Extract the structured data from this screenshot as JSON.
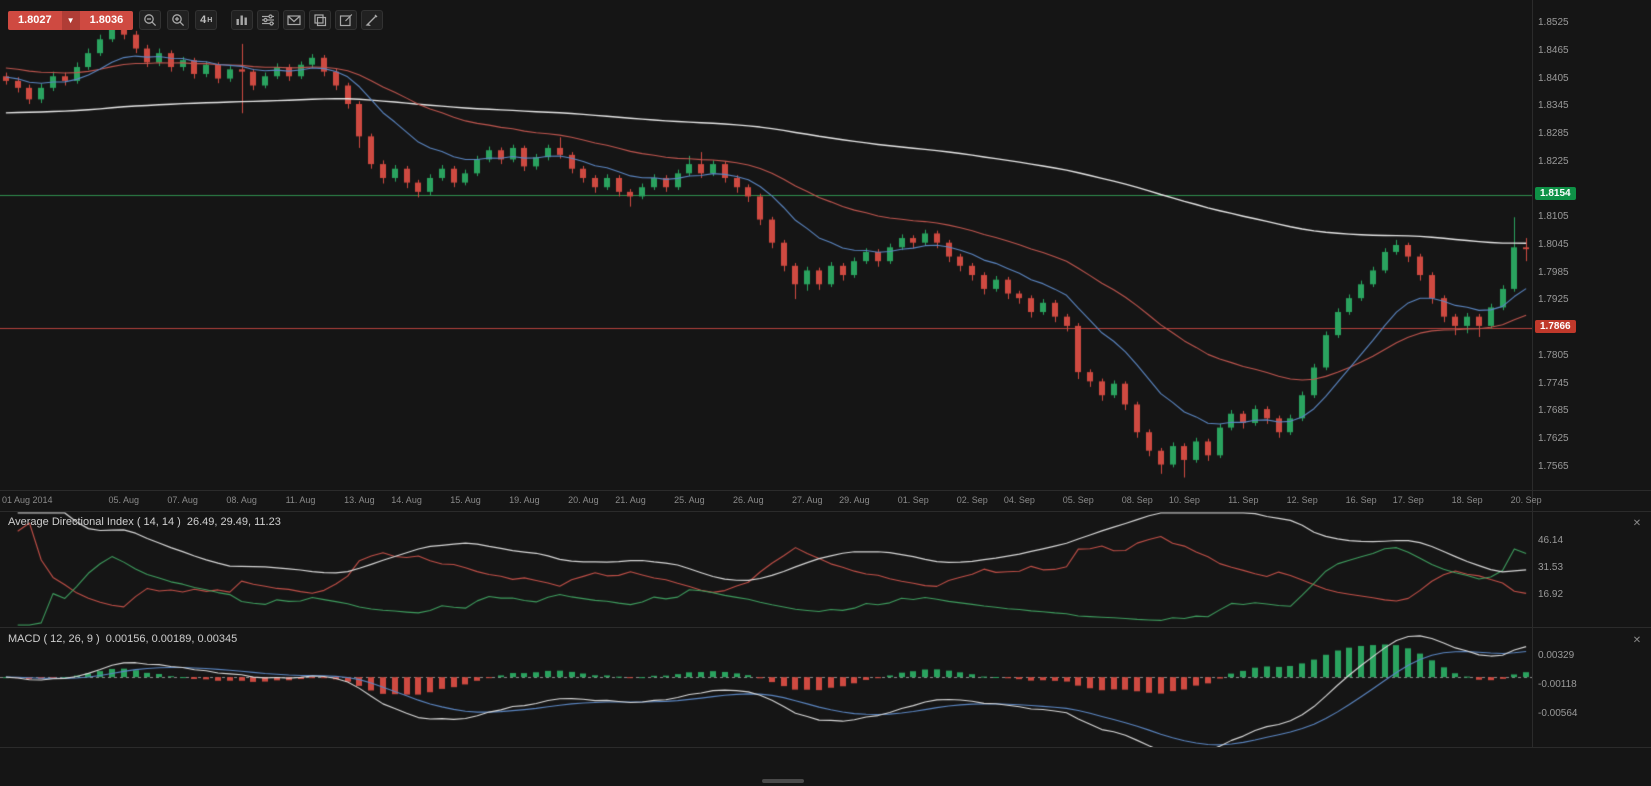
{
  "toolbar": {
    "sell_price": "1.8027",
    "buy_price": "1.8036",
    "timeframe_value": "4",
    "timeframe_unit": "H",
    "icon_names": [
      "price-direction-down",
      "zoom-out",
      "zoom-in",
      "timeframe",
      "chart-type",
      "indicators",
      "email",
      "copy",
      "edit",
      "draw"
    ],
    "close_label": "✕"
  },
  "colors": {
    "background": "#151515",
    "bull": "#2aa35f",
    "bear": "#cf4a41",
    "ma_white": "#e6e6e6",
    "ma_red": "#c0564f",
    "ma_blue": "#5b86c2",
    "hline_green": "#2f8f4e",
    "hline_red": "#b5423c",
    "badge_green": "#0e9146",
    "badge_red": "#c0392b",
    "adx_line": "#d8d8d8",
    "di_plus": "#3f9e5f",
    "di_minus": "#c25048",
    "macd_line": "#d8d8d8",
    "signal_line": "#5b86c2",
    "hist_pos": "#2aa35f",
    "hist_neg": "#cf4a41",
    "zero_line": "#8a8a8a",
    "axis_text": "#9a9a9a"
  },
  "chart_data": [
    {
      "type": "candlestick",
      "timeframe": "4H",
      "y_range": [
        1.7515,
        1.8575
      ],
      "y_ticks": [
        "1.8525",
        "1.8465",
        "1.8405",
        "1.8345",
        "1.8285",
        "1.8225",
        "1.8105",
        "1.8045",
        "1.7985",
        "1.7925",
        "1.7805",
        "1.7745",
        "1.7685",
        "1.7625",
        "1.7565"
      ],
      "hlines": [
        {
          "value": 1.8154,
          "label": "1.8154",
          "line_color_key": "hline_green",
          "badge_color_key": "badge_green"
        },
        {
          "value": 1.7866,
          "label": "1.7866",
          "line_color_key": "hline_red",
          "badge_color_key": "badge_red"
        }
      ],
      "overlays": [
        {
          "name": "slow-ma-white",
          "type": "ema",
          "period": 150,
          "seed": 1.833,
          "color_key": "ma_white"
        },
        {
          "name": "mid-ma-red",
          "type": "ema",
          "period": 30,
          "seed": 1.843,
          "color_key": "ma_red"
        },
        {
          "name": "fast-ma-blue",
          "type": "ema",
          "period": 11,
          "seed": 1.841,
          "color_key": "ma_blue"
        }
      ],
      "x_labels": [
        {
          "label": "01 Aug 2014",
          "i": 1
        },
        {
          "label": "05. Aug",
          "i": 10
        },
        {
          "label": "07. Aug",
          "i": 15
        },
        {
          "label": "08. Aug",
          "i": 20
        },
        {
          "label": "11. Aug",
          "i": 25
        },
        {
          "label": "13. Aug",
          "i": 30
        },
        {
          "label": "14. Aug",
          "i": 34
        },
        {
          "label": "15. Aug",
          "i": 39
        },
        {
          "label": "19. Aug",
          "i": 44
        },
        {
          "label": "20. Aug",
          "i": 49
        },
        {
          "label": "21. Aug",
          "i": 53
        },
        {
          "label": "25. Aug",
          "i": 58
        },
        {
          "label": "26. Aug",
          "i": 63
        },
        {
          "label": "27. Aug",
          "i": 68
        },
        {
          "label": "29. Aug",
          "i": 72
        },
        {
          "label": "01. Sep",
          "i": 77
        },
        {
          "label": "02. Sep",
          "i": 82
        },
        {
          "label": "04. Sep",
          "i": 86
        },
        {
          "label": "05. Sep",
          "i": 91
        },
        {
          "label": "08. Sep",
          "i": 96
        },
        {
          "label": "10. Sep",
          "i": 100
        },
        {
          "label": "11. Sep",
          "i": 105
        },
        {
          "label": "12. Sep",
          "i": 110
        },
        {
          "label": "16. Sep",
          "i": 115
        },
        {
          "label": "17. Sep",
          "i": 119
        },
        {
          "label": "18. Sep",
          "i": 124
        },
        {
          "label": "20. Sep",
          "i": 129
        }
      ],
      "candles": [
        [
          1.841,
          1.8418,
          1.8392,
          1.84
        ],
        [
          1.84,
          1.8408,
          1.8375,
          1.8385
        ],
        [
          1.8385,
          1.8392,
          1.835,
          1.836
        ],
        [
          1.836,
          1.8394,
          1.8352,
          1.8385
        ],
        [
          1.8385,
          1.842,
          1.8378,
          1.841
        ],
        [
          1.841,
          1.8418,
          1.839,
          1.84
        ],
        [
          1.84,
          1.844,
          1.8394,
          1.843
        ],
        [
          1.843,
          1.847,
          1.8424,
          1.846
        ],
        [
          1.846,
          1.85,
          1.8454,
          1.849
        ],
        [
          1.849,
          1.853,
          1.8484,
          1.8515
        ],
        [
          1.8515,
          1.8522,
          1.849,
          1.85
        ],
        [
          1.85,
          1.8508,
          1.846,
          1.847
        ],
        [
          1.847,
          1.8478,
          1.843,
          1.844
        ],
        [
          1.844,
          1.847,
          1.8432,
          1.846
        ],
        [
          1.846,
          1.8466,
          1.842,
          1.843
        ],
        [
          1.843,
          1.8452,
          1.8422,
          1.8445
        ],
        [
          1.8445,
          1.845,
          1.8405,
          1.8415
        ],
        [
          1.8415,
          1.8442,
          1.8408,
          1.8435
        ],
        [
          1.8435,
          1.844,
          1.8395,
          1.8405
        ],
        [
          1.8405,
          1.8432,
          1.8398,
          1.8425
        ],
        [
          1.8425,
          1.848,
          1.833,
          1.842
        ],
        [
          1.842,
          1.8426,
          1.838,
          1.839
        ],
        [
          1.839,
          1.8418,
          1.8384,
          1.841
        ],
        [
          1.841,
          1.8438,
          1.8404,
          1.843
        ],
        [
          1.843,
          1.8436,
          1.84,
          1.841
        ],
        [
          1.841,
          1.8442,
          1.8404,
          1.8435
        ],
        [
          1.8435,
          1.8458,
          1.8428,
          1.845
        ],
        [
          1.845,
          1.8456,
          1.841,
          1.842
        ],
        [
          1.842,
          1.8426,
          1.838,
          1.839
        ],
        [
          1.839,
          1.8396,
          1.834,
          1.835
        ],
        [
          1.835,
          1.8356,
          1.8255,
          1.828
        ],
        [
          1.828,
          1.8286,
          1.821,
          1.822
        ],
        [
          1.822,
          1.8228,
          1.8178,
          1.819
        ],
        [
          1.819,
          1.8218,
          1.8182,
          1.821
        ],
        [
          1.821,
          1.8216,
          1.8168,
          1.818
        ],
        [
          1.818,
          1.8186,
          1.8148,
          1.816
        ],
        [
          1.816,
          1.8198,
          1.8152,
          1.819
        ],
        [
          1.819,
          1.8218,
          1.8184,
          1.821
        ],
        [
          1.821,
          1.8216,
          1.817,
          1.818
        ],
        [
          1.818,
          1.8208,
          1.8174,
          1.82
        ],
        [
          1.82,
          1.8238,
          1.8194,
          1.823
        ],
        [
          1.823,
          1.8258,
          1.8224,
          1.825
        ],
        [
          1.825,
          1.8256,
          1.822,
          1.823
        ],
        [
          1.823,
          1.8262,
          1.8224,
          1.8255
        ],
        [
          1.8255,
          1.826,
          1.8205,
          1.8215
        ],
        [
          1.8215,
          1.8242,
          1.8208,
          1.8235
        ],
        [
          1.8235,
          1.8262,
          1.8228,
          1.8255
        ],
        [
          1.8255,
          1.8278,
          1.8232,
          1.824
        ],
        [
          1.824,
          1.8246,
          1.82,
          1.821
        ],
        [
          1.821,
          1.8216,
          1.818,
          1.819
        ],
        [
          1.819,
          1.8196,
          1.8158,
          1.817
        ],
        [
          1.817,
          1.8198,
          1.8164,
          1.819
        ],
        [
          1.819,
          1.8196,
          1.815,
          1.816
        ],
        [
          1.816,
          1.8166,
          1.8128,
          1.815
        ],
        [
          1.815,
          1.8178,
          1.8144,
          1.817
        ],
        [
          1.817,
          1.8198,
          1.8164,
          1.819
        ],
        [
          1.819,
          1.8196,
          1.816,
          1.817
        ],
        [
          1.817,
          1.8208,
          1.8164,
          1.82
        ],
        [
          1.82,
          1.8238,
          1.8194,
          1.822
        ],
        [
          1.822,
          1.8246,
          1.819,
          1.82
        ],
        [
          1.82,
          1.8228,
          1.8194,
          1.822
        ],
        [
          1.822,
          1.8226,
          1.818,
          1.819
        ],
        [
          1.819,
          1.8196,
          1.8158,
          1.817
        ],
        [
          1.817,
          1.8176,
          1.8138,
          1.815
        ],
        [
          1.815,
          1.8156,
          1.8088,
          1.81
        ],
        [
          1.81,
          1.8106,
          1.8038,
          1.805
        ],
        [
          1.805,
          1.8056,
          1.7988,
          1.8
        ],
        [
          1.8,
          1.8006,
          1.7928,
          1.796
        ],
        [
          1.796,
          1.7998,
          1.7946,
          1.799
        ],
        [
          1.799,
          1.7996,
          1.7948,
          1.796
        ],
        [
          1.796,
          1.8008,
          1.7954,
          1.8
        ],
        [
          1.8,
          1.8006,
          1.7968,
          1.798
        ],
        [
          1.798,
          1.8018,
          1.7974,
          1.801
        ],
        [
          1.801,
          1.8038,
          1.8004,
          1.803
        ],
        [
          1.803,
          1.8036,
          1.7998,
          1.801
        ],
        [
          1.801,
          1.8048,
          1.8004,
          1.804
        ],
        [
          1.804,
          1.8068,
          1.8034,
          1.806
        ],
        [
          1.806,
          1.8066,
          1.8038,
          1.805
        ],
        [
          1.805,
          1.8078,
          1.8044,
          1.807
        ],
        [
          1.807,
          1.8076,
          1.8038,
          1.805
        ],
        [
          1.805,
          1.8056,
          1.8008,
          1.802
        ],
        [
          1.802,
          1.8026,
          1.7988,
          1.8
        ],
        [
          1.8,
          1.8006,
          1.7968,
          1.798
        ],
        [
          1.798,
          1.7986,
          1.7938,
          1.795
        ],
        [
          1.795,
          1.7978,
          1.7944,
          1.797
        ],
        [
          1.797,
          1.7976,
          1.7928,
          1.794
        ],
        [
          1.794,
          1.7946,
          1.7918,
          1.793
        ],
        [
          1.793,
          1.7936,
          1.7888,
          1.79
        ],
        [
          1.79,
          1.7928,
          1.7894,
          1.792
        ],
        [
          1.792,
          1.7926,
          1.7878,
          1.789
        ],
        [
          1.789,
          1.7896,
          1.7858,
          1.787
        ],
        [
          1.787,
          1.7876,
          1.7755,
          1.777
        ],
        [
          1.777,
          1.7776,
          1.7738,
          1.775
        ],
        [
          1.775,
          1.7756,
          1.7708,
          1.772
        ],
        [
          1.772,
          1.7752,
          1.7714,
          1.7745
        ],
        [
          1.7745,
          1.775,
          1.7688,
          1.77
        ],
        [
          1.77,
          1.7706,
          1.7628,
          1.764
        ],
        [
          1.764,
          1.7646,
          1.7588,
          1.76
        ],
        [
          1.76,
          1.7606,
          1.755,
          1.757
        ],
        [
          1.757,
          1.7618,
          1.7564,
          1.761
        ],
        [
          1.761,
          1.7616,
          1.7542,
          1.758
        ],
        [
          1.758,
          1.7628,
          1.7574,
          1.762
        ],
        [
          1.762,
          1.7626,
          1.7578,
          1.759
        ],
        [
          1.759,
          1.7658,
          1.7584,
          1.765
        ],
        [
          1.765,
          1.7688,
          1.7644,
          1.768
        ],
        [
          1.768,
          1.7686,
          1.7648,
          1.766
        ],
        [
          1.766,
          1.7698,
          1.7654,
          1.769
        ],
        [
          1.769,
          1.7696,
          1.7658,
          1.767
        ],
        [
          1.767,
          1.7676,
          1.7628,
          1.764
        ],
        [
          1.764,
          1.7678,
          1.7634,
          1.767
        ],
        [
          1.767,
          1.7728,
          1.7664,
          1.772
        ],
        [
          1.772,
          1.7788,
          1.7714,
          1.778
        ],
        [
          1.778,
          1.7858,
          1.7774,
          1.785
        ],
        [
          1.785,
          1.7908,
          1.7844,
          1.79
        ],
        [
          1.79,
          1.7938,
          1.7894,
          1.793
        ],
        [
          1.793,
          1.7968,
          1.7924,
          1.796
        ],
        [
          1.796,
          1.7998,
          1.7954,
          1.799
        ],
        [
          1.799,
          1.8038,
          1.7984,
          1.803
        ],
        [
          1.803,
          1.8056,
          1.8024,
          1.8045
        ],
        [
          1.8045,
          1.805,
          1.8008,
          1.802
        ],
        [
          1.802,
          1.8026,
          1.7968,
          1.798
        ],
        [
          1.798,
          1.7986,
          1.7918,
          1.793
        ],
        [
          1.793,
          1.7936,
          1.7878,
          1.789
        ],
        [
          1.789,
          1.7896,
          1.785,
          1.787
        ],
        [
          1.787,
          1.7898,
          1.7854,
          1.789
        ],
        [
          1.789,
          1.7896,
          1.7846,
          1.787
        ],
        [
          1.787,
          1.7918,
          1.7864,
          1.791
        ],
        [
          1.791,
          1.7958,
          1.7904,
          1.795
        ],
        [
          1.795,
          1.8105,
          1.7944,
          1.804
        ],
        [
          1.804,
          1.806,
          1.801,
          1.8036
        ]
      ]
    },
    {
      "type": "line",
      "name": "adx",
      "title": "Average Directional Index ( 14, 14 )",
      "display_values": "26.49, 29.49, 11.23",
      "params": {
        "period": 14
      },
      "y_ticks": [
        "46.14",
        "31.53",
        "16.92"
      ],
      "y_range": [
        0,
        62
      ],
      "series": [
        "adx",
        "plus_di",
        "minus_di"
      ],
      "derived_from": "chart_data.0.candles"
    },
    {
      "type": "macd",
      "name": "macd",
      "title": "MACD ( 12, 26, 9 )",
      "display_values": "0.00156, 0.00189, 0.00345",
      "params": {
        "fast": 12,
        "slow": 26,
        "signal": 9
      },
      "y_ticks": [
        "0.00329",
        "-0.00118",
        "-0.00564"
      ],
      "y_range": [
        -0.0108,
        0.0076
      ],
      "derived_from": "chart_data.0.candles"
    }
  ]
}
